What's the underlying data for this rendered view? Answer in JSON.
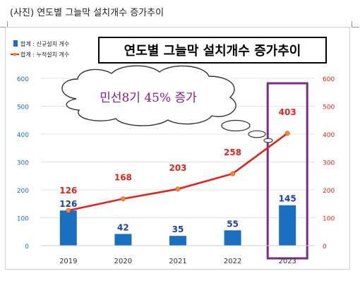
{
  "caption": "(사진) 연도별 그늘막 설치개수 증가추이",
  "chart_data": {
    "type": "bar+line",
    "title": "연도별 그늘막 설치개수 증가추이",
    "callout": "민선8기 45% 증가",
    "categories": [
      "2019",
      "2020",
      "2021",
      "2022",
      "2023"
    ],
    "series": [
      {
        "name": "합계 : 신규설치 개수",
        "type": "bar",
        "axis": "left",
        "color": "#1a6fc0",
        "label_color": "#1f3fa8",
        "values": [
          126,
          42,
          35,
          55,
          145
        ]
      },
      {
        "name": "합계 : 누적설치 개수",
        "type": "line",
        "axis": "right",
        "color": "#e0251b",
        "marker_color": "#f28a33",
        "label_color": "#e0251b",
        "values": [
          126,
          168,
          203,
          258,
          403
        ]
      }
    ],
    "ylim": [
      0,
      600
    ],
    "y_ticks": [
      "0",
      "100",
      "200",
      "300",
      "400",
      "500",
      "600"
    ],
    "y2lim": [
      0,
      600
    ],
    "y2_ticks": [
      "0",
      "100",
      "200",
      "300",
      "400",
      "500",
      "600"
    ],
    "grid": true,
    "highlight_category": "2023",
    "highlight_color": "#7b2a86",
    "legend_position": "top-left"
  }
}
